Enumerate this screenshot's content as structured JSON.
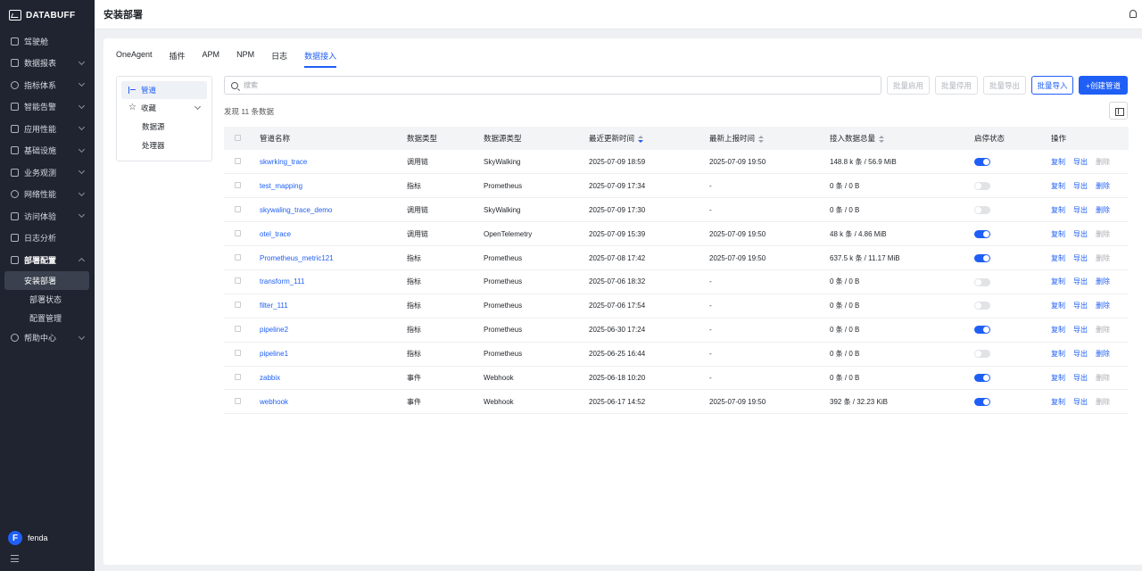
{
  "brand": "DATABUFF",
  "header": {
    "title": "安装部署"
  },
  "sidebar": {
    "items": [
      {
        "label": "驾驶舱",
        "icon": "monitor-icon",
        "has_children": false
      },
      {
        "label": "数据报表",
        "icon": "report-icon",
        "has_children": true
      },
      {
        "label": "指标体系",
        "icon": "metrics-icon",
        "has_children": true
      },
      {
        "label": "智能告警",
        "icon": "alert-icon",
        "has_children": true
      },
      {
        "label": "应用性能",
        "icon": "app-icon",
        "has_children": true
      },
      {
        "label": "基础设施",
        "icon": "infra-icon",
        "has_children": true
      },
      {
        "label": "业务观测",
        "icon": "business-icon",
        "has_children": true
      },
      {
        "label": "网络性能",
        "icon": "network-icon",
        "has_children": true
      },
      {
        "label": "访问体验",
        "icon": "experience-icon",
        "has_children": true
      },
      {
        "label": "日志分析",
        "icon": "log-icon",
        "has_children": false
      },
      {
        "label": "部署配置",
        "icon": "deploy-icon",
        "has_children": true,
        "open": true
      },
      {
        "label": "帮助中心",
        "icon": "help-icon",
        "has_children": true
      }
    ],
    "deploy_children": [
      "安装部署",
      "部署状态",
      "配置管理"
    ],
    "active_child": "安装部署",
    "user": {
      "initial": "F",
      "name": "fenda"
    }
  },
  "tabs": [
    "OneAgent",
    "插件",
    "APM",
    "NPM",
    "日志",
    "数据接入"
  ],
  "active_tab": "数据接入",
  "left_panel": {
    "pipeline": "管道",
    "favorites": "收藏",
    "sub": [
      "数据源",
      "处理器"
    ]
  },
  "search": {
    "placeholder": "搜索",
    "value": ""
  },
  "buttons": {
    "batch_enable": "批量启用",
    "batch_disable": "批量停用",
    "batch_export": "批量导出",
    "batch_import": "批量导入",
    "create": "+创建管道"
  },
  "count_text": "发现 11 条数据",
  "table": {
    "columns": [
      "管道名称",
      "数据类型",
      "数据源类型",
      "最近更新时间",
      "最新上报时间",
      "接入数据总量",
      "启停状态",
      "操作"
    ],
    "actions": [
      "复制",
      "导出",
      "删除"
    ],
    "rows": [
      {
        "name": "skwrking_trace",
        "type": "调用链",
        "source": "SkyWalking",
        "updated": "2025-07-09 18:59",
        "reported": "2025-07-09 19:50",
        "total": "148.8 k 条 / 56.9 MiB",
        "enabled": true
      },
      {
        "name": "test_mapping",
        "type": "指标",
        "source": "Prometheus",
        "updated": "2025-07-09 17:34",
        "reported": "-",
        "total": "0 条 / 0 B",
        "enabled": false
      },
      {
        "name": "skywaling_trace_demo",
        "type": "调用链",
        "source": "SkyWalking",
        "updated": "2025-07-09 17:30",
        "reported": "-",
        "total": "0 条 / 0 B",
        "enabled": false
      },
      {
        "name": "otel_trace",
        "type": "调用链",
        "source": "OpenTelemetry",
        "updated": "2025-07-09 15:39",
        "reported": "2025-07-09 19:50",
        "total": "48 k 条 / 4.86 MiB",
        "enabled": true
      },
      {
        "name": "Prometheus_metric121",
        "type": "指标",
        "source": "Prometheus",
        "updated": "2025-07-08 17:42",
        "reported": "2025-07-09 19:50",
        "total": "637.5 k 条 / 11.17 MiB",
        "enabled": true
      },
      {
        "name": "transform_111",
        "type": "指标",
        "source": "Prometheus",
        "updated": "2025-07-06 18:32",
        "reported": "-",
        "total": "0 条 / 0 B",
        "enabled": false
      },
      {
        "name": "filter_111",
        "type": "指标",
        "source": "Prometheus",
        "updated": "2025-07-06 17:54",
        "reported": "-",
        "total": "0 条 / 0 B",
        "enabled": false
      },
      {
        "name": "pipeline2",
        "type": "指标",
        "source": "Prometheus",
        "updated": "2025-06-30 17:24",
        "reported": "-",
        "total": "0 条 / 0 B",
        "enabled": true
      },
      {
        "name": "pipeline1",
        "type": "指标",
        "source": "Prometheus",
        "updated": "2025-06-25 16:44",
        "reported": "-",
        "total": "0 条 / 0 B",
        "enabled": false
      },
      {
        "name": "zabbix",
        "type": "事件",
        "source": "Webhook",
        "updated": "2025-06-18 10:20",
        "reported": "-",
        "total": "0 条 / 0 B",
        "enabled": true
      },
      {
        "name": "webhook",
        "type": "事件",
        "source": "Webhook",
        "updated": "2025-06-17 14:52",
        "reported": "2025-07-09 19:50",
        "total": "392 条 / 32.23 KiB",
        "enabled": true
      }
    ]
  },
  "colors": {
    "accent": "#1f5ff5",
    "sidebar_bg": "#1f2430"
  }
}
